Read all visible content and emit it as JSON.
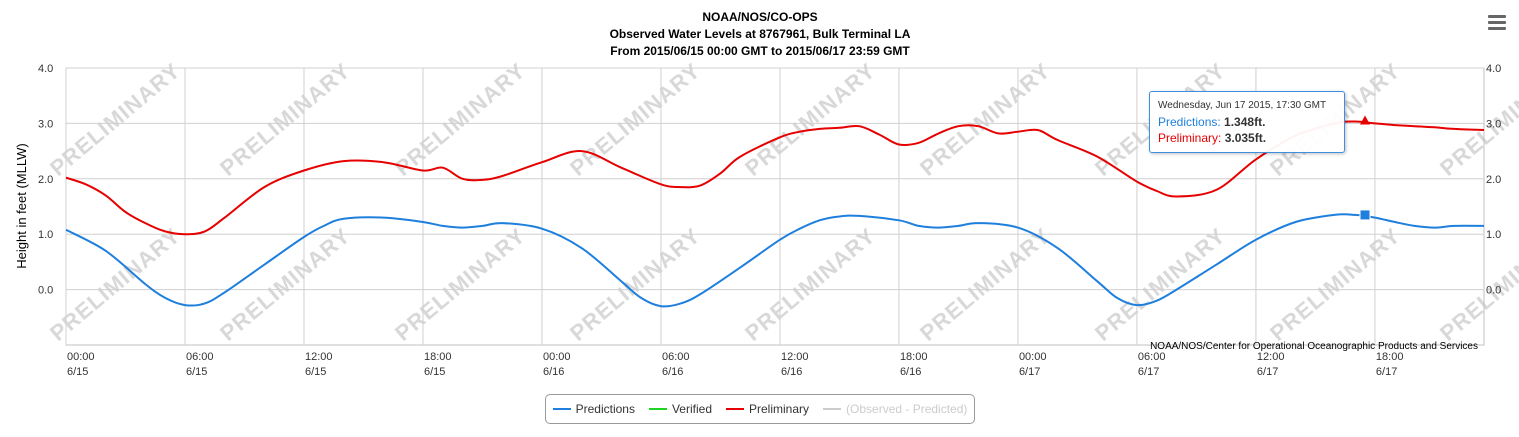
{
  "chart_data": {
    "type": "line",
    "title": "NOAA/NOS/CO-OPS",
    "subtitle1": "Observed Water Levels at 8767961, Bulk Terminal LA",
    "subtitle2": "From 2015/06/15 00:00 GMT to 2015/06/17 23:59 GMT",
    "ylabel": "Height in feet (MLLW)",
    "ylim": [
      -1.0,
      4.0
    ],
    "y_ticks": [
      "4.0",
      "3.0",
      "2.0",
      "1.0",
      "0.0"
    ],
    "x_range_hours": [
      0,
      71.5
    ],
    "x_ticks": [
      {
        "time": "00:00",
        "date": "6/15",
        "hour": 0
      },
      {
        "time": "06:00",
        "date": "6/15",
        "hour": 6
      },
      {
        "time": "12:00",
        "date": "6/15",
        "hour": 12
      },
      {
        "time": "18:00",
        "date": "6/15",
        "hour": 18
      },
      {
        "time": "00:00",
        "date": "6/16",
        "hour": 24
      },
      {
        "time": "06:00",
        "date": "6/16",
        "hour": 30
      },
      {
        "time": "12:00",
        "date": "6/16",
        "hour": 36
      },
      {
        "time": "18:00",
        "date": "6/16",
        "hour": 42
      },
      {
        "time": "00:00",
        "date": "6/17",
        "hour": 48
      },
      {
        "time": "06:00",
        "date": "6/17",
        "hour": 54
      },
      {
        "time": "12:00",
        "date": "6/17",
        "hour": 60
      },
      {
        "time": "18:00",
        "date": "6/17",
        "hour": 66
      }
    ],
    "watermark": "PRELIMINARY",
    "credit": "NOAA/NOS/Center for Operational Oceanographic Products and Services",
    "series": [
      {
        "name": "Predictions",
        "color": "#1e7fdc",
        "x": [
          0,
          2,
          4,
          5,
          6,
          7,
          8,
          10,
          12,
          13,
          14,
          16,
          18,
          19,
          20,
          21,
          22,
          24,
          26,
          28,
          29,
          30,
          31,
          32,
          34,
          36,
          37,
          38,
          39,
          40,
          42,
          43,
          44,
          45,
          46,
          48,
          50,
          52,
          53,
          54,
          55,
          56,
          58,
          60,
          62,
          64,
          65,
          66,
          67,
          68,
          69,
          70,
          71.5
        ],
        "y": [
          1.08,
          0.7,
          0.1,
          -0.15,
          -0.28,
          -0.25,
          -0.05,
          0.45,
          0.95,
          1.15,
          1.28,
          1.3,
          1.22,
          1.15,
          1.12,
          1.15,
          1.2,
          1.1,
          0.75,
          0.15,
          -0.15,
          -0.3,
          -0.25,
          -0.08,
          0.4,
          0.9,
          1.1,
          1.25,
          1.32,
          1.33,
          1.25,
          1.15,
          1.12,
          1.15,
          1.2,
          1.12,
          0.75,
          0.15,
          -0.15,
          -0.28,
          -0.2,
          0.0,
          0.45,
          0.9,
          1.22,
          1.35,
          1.348,
          1.3,
          1.22,
          1.15,
          1.12,
          1.15,
          1.15
        ]
      },
      {
        "name": "Verified",
        "color": "#22d422",
        "x": [],
        "y": []
      },
      {
        "name": "Preliminary",
        "color": "#e60000",
        "x": [
          0,
          1,
          2,
          3,
          4,
          5,
          6,
          7,
          8,
          10,
          12,
          14,
          16,
          18,
          19,
          20,
          21,
          22,
          24,
          26,
          28,
          30,
          31,
          32,
          33,
          34,
          36,
          37,
          38,
          39,
          40,
          41,
          42,
          43,
          44,
          45,
          46,
          47,
          48,
          49,
          50,
          52,
          54,
          55,
          56,
          58,
          60,
          62,
          64,
          65,
          66,
          67,
          68,
          69,
          70,
          71.5
        ],
        "y": [
          2.02,
          1.9,
          1.7,
          1.4,
          1.2,
          1.05,
          1.0,
          1.05,
          1.3,
          1.85,
          2.15,
          2.32,
          2.3,
          2.15,
          2.2,
          2.0,
          1.98,
          2.05,
          2.3,
          2.5,
          2.2,
          1.9,
          1.85,
          1.88,
          2.1,
          2.4,
          2.75,
          2.85,
          2.9,
          2.92,
          2.95,
          2.8,
          2.62,
          2.65,
          2.82,
          2.95,
          2.95,
          2.82,
          2.85,
          2.88,
          2.7,
          2.4,
          1.95,
          1.78,
          1.68,
          1.8,
          2.35,
          2.78,
          3.0,
          3.035,
          3.0,
          2.97,
          2.95,
          2.93,
          2.9,
          2.88
        ]
      },
      {
        "name": "(Observed - Predicted)",
        "color": "#cccccc",
        "x": [],
        "y": []
      }
    ],
    "legend_position": "bottom-center",
    "grid": true
  },
  "tooltip": {
    "date": "Wednesday, Jun 17 2015, 17:30 GMT",
    "hour": 65.5,
    "pred_label": "Predictions:",
    "pred_value": "1.348ft.",
    "prelim_label": "Preliminary:",
    "prelim_value": "3.035ft."
  },
  "legend": {
    "predictions": "Predictions",
    "verified": "Verified",
    "preliminary": "Preliminary",
    "residual": "(Observed - Predicted)"
  }
}
